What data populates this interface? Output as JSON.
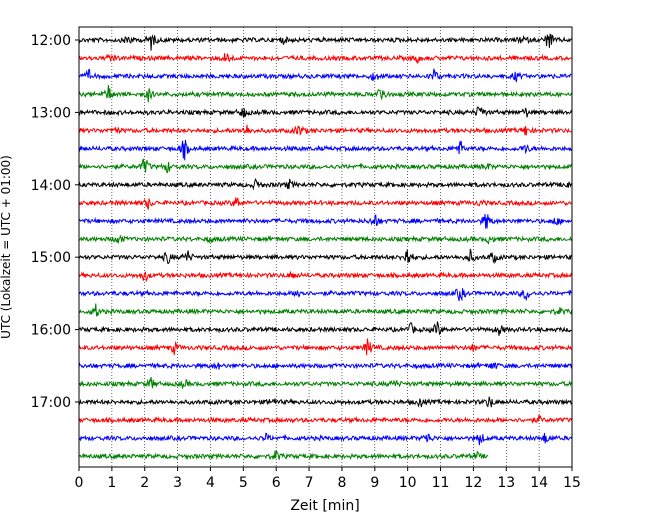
{
  "chart_data": {
    "type": "line",
    "title": "",
    "xlabel": "Zeit  [min]",
    "ylabel": "UTC (Lokalzeit = UTC + 01:00)",
    "xlim": [
      0,
      15
    ],
    "x_ticks": [
      "0",
      "1",
      "2",
      "3",
      "4",
      "5",
      "6",
      "7",
      "8",
      "9",
      "10",
      "11",
      "12",
      "13",
      "14",
      "15"
    ],
    "y_ticks": [
      "12:00",
      "13:00",
      "14:00",
      "15:00",
      "16:00",
      "17:00"
    ],
    "grid": "vertical dotted",
    "trace_interval_min": 15,
    "trace_colors": [
      "#000000",
      "#ff0000",
      "#0000ff",
      "#008000"
    ],
    "traces": [
      {
        "start": "12:00",
        "color": "#000000",
        "end_min": 15,
        "events": [
          [
            1.5,
            0.6
          ],
          [
            2.2,
            0.9
          ],
          [
            6.2,
            0.3
          ],
          [
            13.5,
            0.4
          ],
          [
            14.3,
            1.0
          ]
        ]
      },
      {
        "start": "12:15",
        "color": "#ff0000",
        "end_min": 15,
        "events": [
          [
            1.0,
            0.4
          ],
          [
            4.5,
            0.7
          ],
          [
            10.3,
            0.3
          ]
        ]
      },
      {
        "start": "12:30",
        "color": "#0000ff",
        "end_min": 15,
        "events": [
          [
            0.3,
            0.5
          ],
          [
            9.0,
            0.5
          ],
          [
            10.8,
            0.6
          ],
          [
            13.3,
            0.4
          ]
        ]
      },
      {
        "start": "12:45",
        "color": "#008000",
        "end_min": 15,
        "events": [
          [
            0.9,
            0.7
          ],
          [
            2.1,
            0.6
          ],
          [
            9.2,
            0.9
          ]
        ]
      },
      {
        "start": "13:00",
        "color": "#000000",
        "end_min": 15,
        "events": [
          [
            5.0,
            0.5
          ],
          [
            12.2,
            0.8
          ],
          [
            13.6,
            0.4
          ]
        ]
      },
      {
        "start": "13:15",
        "color": "#ff0000",
        "end_min": 15,
        "events": [
          [
            1.1,
            0.3
          ],
          [
            5.1,
            0.5
          ],
          [
            6.7,
            0.6
          ],
          [
            13.6,
            0.5
          ]
        ]
      },
      {
        "start": "13:30",
        "color": "#0000ff",
        "end_min": 15,
        "events": [
          [
            3.2,
            1.0
          ],
          [
            11.6,
            0.7
          ],
          [
            13.6,
            0.4
          ]
        ]
      },
      {
        "start": "13:45",
        "color": "#008000",
        "end_min": 15,
        "events": [
          [
            2.0,
            0.9
          ],
          [
            2.7,
            0.5
          ],
          [
            12.4,
            0.3
          ]
        ]
      },
      {
        "start": "14:00",
        "color": "#000000",
        "end_min": 15,
        "events": [
          [
            5.4,
            0.5
          ],
          [
            6.4,
            0.4
          ],
          [
            14.9,
            0.4
          ]
        ]
      },
      {
        "start": "14:15",
        "color": "#ff0000",
        "end_min": 15,
        "events": [
          [
            2.1,
            0.5
          ],
          [
            4.8,
            0.6
          ],
          [
            12.2,
            0.2
          ]
        ]
      },
      {
        "start": "14:30",
        "color": "#0000ff",
        "end_min": 15,
        "events": [
          [
            9.0,
            0.7
          ],
          [
            12.4,
            0.9
          ],
          [
            14.5,
            0.4
          ]
        ]
      },
      {
        "start": "14:45",
        "color": "#008000",
        "end_min": 15,
        "events": [
          [
            1.2,
            0.5
          ],
          [
            4.0,
            0.3
          ],
          [
            12.5,
            0.4
          ]
        ]
      },
      {
        "start": "15:00",
        "color": "#000000",
        "end_min": 15,
        "events": [
          [
            2.7,
            0.6
          ],
          [
            3.3,
            0.6
          ],
          [
            10.0,
            1.0
          ],
          [
            11.9,
            0.6
          ],
          [
            12.6,
            0.5
          ]
        ]
      },
      {
        "start": "15:15",
        "color": "#ff0000",
        "end_min": 15,
        "events": [
          [
            2.0,
            0.6
          ],
          [
            6.5,
            0.3
          ]
        ]
      },
      {
        "start": "15:30",
        "color": "#0000ff",
        "end_min": 15,
        "events": [
          [
            6.7,
            0.5
          ],
          [
            11.6,
            0.8
          ],
          [
            13.6,
            0.6
          ]
        ]
      },
      {
        "start": "15:45",
        "color": "#008000",
        "end_min": 15,
        "events": [
          [
            0.5,
            0.6
          ],
          [
            14.6,
            0.3
          ]
        ]
      },
      {
        "start": "16:00",
        "color": "#000000",
        "end_min": 15,
        "events": [
          [
            10.1,
            0.5
          ],
          [
            10.9,
            0.7
          ],
          [
            12.8,
            0.5
          ]
        ]
      },
      {
        "start": "16:15",
        "color": "#ff0000",
        "end_min": 15,
        "events": [
          [
            2.9,
            0.5
          ],
          [
            8.8,
            0.9
          ],
          [
            12.0,
            0.3
          ]
        ]
      },
      {
        "start": "16:30",
        "color": "#0000ff",
        "end_min": 15,
        "events": [
          [
            4.2,
            0.3
          ],
          [
            12.6,
            0.4
          ]
        ]
      },
      {
        "start": "16:45",
        "color": "#008000",
        "end_min": 15,
        "events": [
          [
            2.2,
            0.5
          ],
          [
            3.2,
            0.4
          ],
          [
            9.6,
            0.3
          ]
        ]
      },
      {
        "start": "17:00",
        "color": "#000000",
        "end_min": 15,
        "events": [
          [
            5.9,
            0.4
          ],
          [
            10.4,
            0.4
          ],
          [
            12.5,
            0.6
          ]
        ]
      },
      {
        "start": "17:15",
        "color": "#ff0000",
        "end_min": 15,
        "events": [
          [
            14.0,
            0.3
          ]
        ]
      },
      {
        "start": "17:30",
        "color": "#0000ff",
        "end_min": 15,
        "events": [
          [
            5.7,
            0.3
          ],
          [
            10.6,
            0.5
          ],
          [
            12.2,
            0.6
          ],
          [
            14.2,
            0.5
          ]
        ]
      },
      {
        "start": "17:45",
        "color": "#008000",
        "end_min": 12.45,
        "events": [
          [
            6.0,
            0.5
          ],
          [
            12.1,
            0.3
          ]
        ]
      }
    ]
  }
}
